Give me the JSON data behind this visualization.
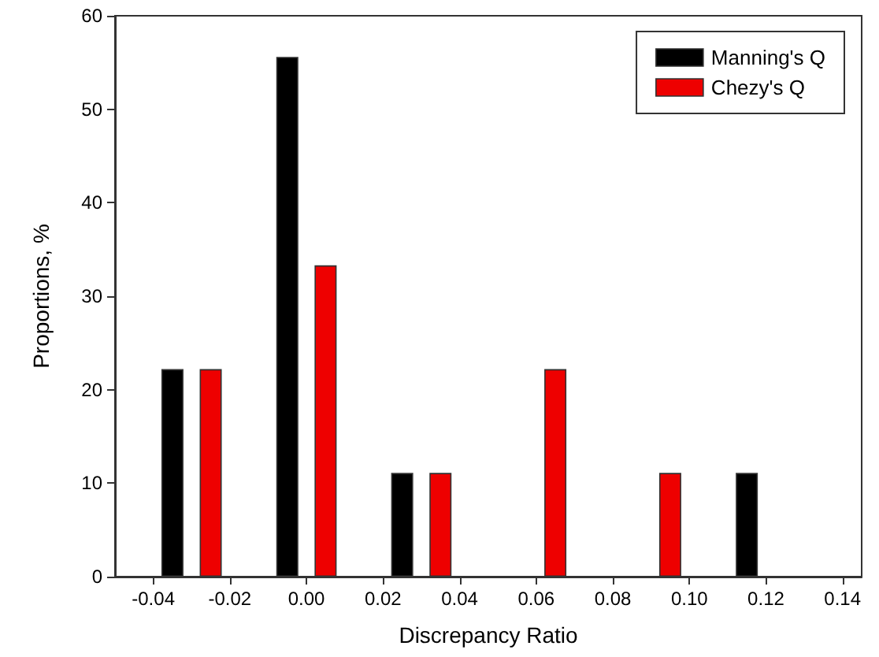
{
  "chart_data": {
    "type": "bar",
    "xlabel": "Discrepancy Ratio",
    "ylabel": "Proportions, %",
    "xlim": [
      -0.05,
      0.145
    ],
    "xticks": [
      {
        "value": -0.04,
        "label": "-0.04"
      },
      {
        "value": -0.02,
        "label": "-0.02"
      },
      {
        "value": 0,
        "label": "0.00"
      },
      {
        "value": 0.02,
        "label": "0.02"
      },
      {
        "value": 0.04,
        "label": "0.04"
      },
      {
        "value": 0.06,
        "label": "0.06"
      },
      {
        "value": 0.08,
        "label": "0.08"
      },
      {
        "value": 0.1,
        "label": "0.10"
      },
      {
        "value": 0.12,
        "label": "0.12"
      },
      {
        "value": 0.14,
        "label": "0.14"
      }
    ],
    "ylim": [
      0,
      60
    ],
    "yticks": [
      0,
      10,
      20,
      30,
      40,
      50,
      60
    ],
    "series": [
      {
        "name": "Manning's Q",
        "color": "#000000",
        "x": [
          -0.035,
          -0.005,
          0.025,
          0.115
        ],
        "values": [
          22.2,
          55.6,
          11.1,
          11.1
        ]
      },
      {
        "name": "Chezy's Q",
        "color": "#ee0000",
        "x": [
          -0.025,
          0.005,
          0.035,
          0.065,
          0.095
        ],
        "values": [
          22.2,
          33.3,
          11.1,
          22.2,
          11.1
        ]
      }
    ],
    "legend": "top right",
    "grid": false
  }
}
